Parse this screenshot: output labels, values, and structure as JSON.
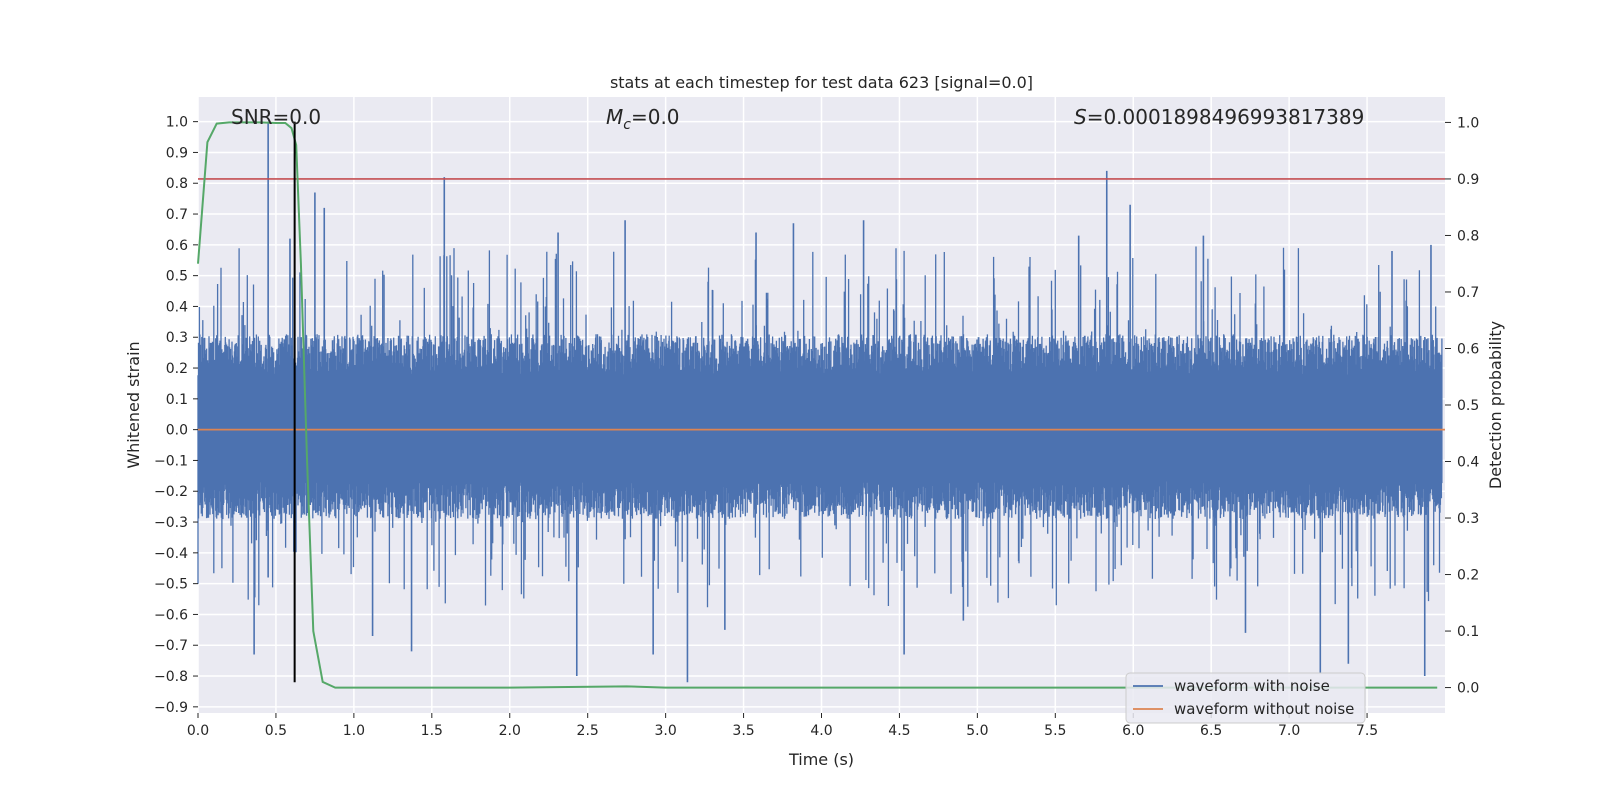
{
  "chart_data": {
    "type": "line",
    "title": "stats at each timestep for test data 623 [signal=0.0]",
    "xlabel": "Time (s)",
    "ylabel": "Whitened strain",
    "y2label": "Detection probability",
    "xlim": [
      0.0,
      8.0
    ],
    "ylim": [
      -0.92,
      1.08
    ],
    "y2lim": [
      -0.045,
      1.045
    ],
    "x_ticks": [
      0.0,
      0.5,
      1.0,
      1.5,
      2.0,
      2.5,
      3.0,
      3.5,
      4.0,
      4.5,
      5.0,
      5.5,
      6.0,
      6.5,
      7.0,
      7.5
    ],
    "x_tick_labels": [
      "0.0",
      "0.5",
      "1.0",
      "1.5",
      "2.0",
      "2.5",
      "3.0",
      "3.5",
      "4.0",
      "4.5",
      "5.0",
      "5.5",
      "6.0",
      "6.5",
      "7.0",
      "7.5"
    ],
    "y_ticks": [
      1.0,
      0.9,
      0.8,
      0.7,
      0.6,
      0.5,
      0.4,
      0.3,
      0.2,
      0.1,
      0.0,
      -0.1,
      -0.2,
      -0.3,
      -0.4,
      -0.5,
      -0.6,
      -0.7,
      -0.8,
      -0.9
    ],
    "y_tick_labels": [
      "1.0",
      "0.9",
      "0.8",
      "0.7",
      "0.6",
      "0.5",
      "0.4",
      "0.3",
      "0.2",
      "0.1",
      "0.0",
      "−0.1",
      "−0.2",
      "−0.3",
      "−0.4",
      "−0.5",
      "−0.6",
      "−0.7",
      "−0.8",
      "−0.9"
    ],
    "y2_ticks": [
      1.0,
      0.9,
      0.8,
      0.7,
      0.6,
      0.5,
      0.4,
      0.3,
      0.2,
      0.1,
      0.0
    ],
    "y2_tick_labels": [
      "1.0",
      "0.9",
      "0.8",
      "0.7",
      "0.6",
      "0.5",
      "0.4",
      "0.3",
      "0.2",
      "0.1",
      "0.0"
    ],
    "grid": true,
    "legend_position": "bottom-right",
    "annotations": {
      "snr": "SNR=0.0",
      "mc_symbol": "M",
      "mc_sub": "c",
      "mc_value": "=0.0",
      "s_symbol": "S",
      "s_value": "=0.0001898496993817389"
    },
    "series": [
      {
        "name": "waveform with noise",
        "color": "#4c72b0",
        "axis": "left",
        "band_typical": [
          -0.3,
          0.32
        ],
        "spikes": [
          [
            0.45,
            1.0
          ],
          [
            0.45,
            -0.48
          ],
          [
            0.59,
            0.62
          ],
          [
            0.75,
            0.77
          ],
          [
            0.81,
            0.72
          ],
          [
            0.36,
            -0.73
          ],
          [
            1.58,
            0.82
          ],
          [
            1.37,
            -0.72
          ],
          [
            2.31,
            0.64
          ],
          [
            2.43,
            -0.8
          ],
          [
            2.74,
            0.68
          ],
          [
            2.92,
            -0.73
          ],
          [
            3.14,
            -0.82
          ],
          [
            3.58,
            0.64
          ],
          [
            3.82,
            0.67
          ],
          [
            4.27,
            0.68
          ],
          [
            4.53,
            -0.73
          ],
          [
            5.83,
            0.84
          ],
          [
            5.65,
            0.63
          ],
          [
            5.98,
            0.73
          ],
          [
            6.45,
            0.63
          ],
          [
            7.2,
            -0.79
          ],
          [
            7.38,
            -0.76
          ],
          [
            7.66,
            0.58
          ],
          [
            7.87,
            -0.8
          ],
          [
            7.91,
            0.6
          ],
          [
            1.12,
            -0.67
          ],
          [
            3.38,
            -0.65
          ],
          [
            4.91,
            -0.62
          ],
          [
            6.72,
            -0.66
          ]
        ]
      },
      {
        "name": "waveform without noise",
        "color": "#dd8452",
        "axis": "left",
        "constant": 0.0
      },
      {
        "name": "detection probability",
        "color": "#55a868",
        "axis": "right",
        "x": [
          0.0,
          0.06,
          0.12,
          0.2,
          0.3,
          0.4,
          0.5,
          0.56,
          0.6,
          0.63,
          0.66,
          0.7,
          0.74,
          0.8,
          0.88,
          1.0,
          2.0,
          2.75,
          3.0,
          4.0,
          5.0,
          6.0,
          7.0,
          7.95
        ],
        "y": [
          0.75,
          0.965,
          0.998,
          1.0,
          1.0,
          1.0,
          0.999,
          0.999,
          0.99,
          0.96,
          0.75,
          0.4,
          0.1,
          0.01,
          0.0,
          0.0,
          0.0,
          0.002,
          0.0,
          0.0,
          0.0,
          0.0,
          0.0,
          0.0
        ]
      },
      {
        "name": "threshold",
        "color": "#c44e52",
        "axis": "right",
        "constant": 0.9
      },
      {
        "name": "marker",
        "color": "#000000",
        "axis": "left",
        "x_value": 0.62,
        "y_range": [
          -0.82,
          1.0
        ]
      }
    ],
    "legend": [
      "waveform with noise",
      "waveform without noise"
    ]
  }
}
